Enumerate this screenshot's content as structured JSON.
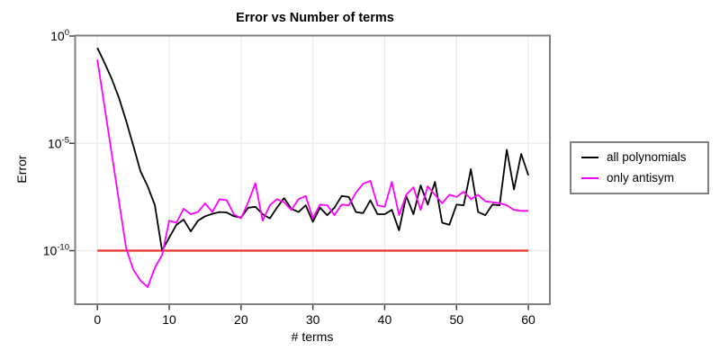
{
  "figure": {
    "title": "Error vs Number of terms",
    "xlabel": "# terms",
    "ylabel": "Error"
  },
  "legend": {
    "items": [
      {
        "label": "all polynomials",
        "color": "#000000"
      },
      {
        "label": "only antisym",
        "color": "#ff00ff"
      }
    ]
  },
  "style": {
    "grid_color": "#ebebeb",
    "spine_color": "#7f7f7f",
    "tick_color": "#333333",
    "background": "#ffffff"
  },
  "chart_data": {
    "type": "line",
    "title": "Error vs Number of terms",
    "xlabel": "# terms",
    "ylabel": "Error",
    "yscale": "log",
    "xlim": [
      -3.1,
      63
    ],
    "ylim": [
      3.2e-13,
      1.05
    ],
    "grid": true,
    "legend_position": "right-outside",
    "x_ticks": [
      0,
      10,
      20,
      30,
      40,
      50,
      60
    ],
    "y_tick_exponents": [
      0,
      -5,
      -10
    ],
    "x": {
      "start": 0,
      "end": 60,
      "step": 1
    },
    "series": [
      {
        "name": "all polynomials",
        "color": "#000000",
        "values": [
          0.28,
          0.056,
          0.01,
          0.0013,
          0.00011,
          7.9e-06,
          5e-07,
          1e-07,
          1.3e-08,
          1e-10,
          4e-10,
          1.6e-09,
          2.8e-09,
          7.9e-10,
          2.5e-09,
          4e-09,
          5.2e-09,
          6.3e-09,
          6e-09,
          4e-09,
          3.5e-09,
          1e-08,
          1.1e-08,
          5e-09,
          3.2e-09,
          1e-08,
          2.8e-08,
          8.9e-09,
          6.3e-09,
          1.3e-08,
          2.2e-09,
          1e-08,
          4.5e-09,
          1e-08,
          3.5e-08,
          3.2e-08,
          6.3e-09,
          5.6e-09,
          2.2e-08,
          5e-09,
          5e-09,
          7.9e-09,
          8.9e-10,
          3.5e-08,
          5e-09,
          1.1e-07,
          1.4e-08,
          1.6e-07,
          2e-09,
          1.6e-09,
          1.4e-08,
          1.3e-08,
          6.3e-07,
          6.3e-09,
          4.5e-09,
          1.4e-08,
          1.3e-08,
          5e-06,
          7.1e-08,
          3.2e-06,
          3.2e-07
        ]
      },
      {
        "name": "only antisym",
        "color": "#ff00ff",
        "values": [
          0.079,
          0.0005,
          3.2e-06,
          2e-08,
          1.3e-10,
          1.3e-11,
          4e-12,
          2e-12,
          1.6e-11,
          6.3e-11,
          2.5e-09,
          2e-09,
          8.9e-09,
          5e-09,
          6.3e-09,
          1.6e-08,
          6.3e-09,
          2.5e-08,
          2.2e-08,
          5e-09,
          3.2e-09,
          1.8e-08,
          1.4e-07,
          2.5e-09,
          1.3e-08,
          2.5e-08,
          1.8e-08,
          7.9e-09,
          2.5e-08,
          3.5e-08,
          3.2e-09,
          1.4e-08,
          1.3e-08,
          4.5e-09,
          1.4e-08,
          1.3e-08,
          5e-08,
          1.3e-07,
          1.8e-07,
          1.3e-08,
          1.1e-08,
          1.6e-07,
          4.5e-09,
          4e-08,
          8.9e-08,
          7.9e-09,
          1e-07,
          4e-08,
          1.6e-08,
          4e-08,
          3.2e-08,
          5.6e-08,
          2.5e-08,
          4e-08,
          2e-08,
          1.8e-08,
          1.6e-08,
          1.3e-08,
          7.9e-09,
          7.1e-09,
          7.1e-09
        ]
      }
    ],
    "threshold_line": {
      "value": 1e-10,
      "x_range": [
        0,
        60
      ],
      "color": "#e8352c"
    }
  }
}
